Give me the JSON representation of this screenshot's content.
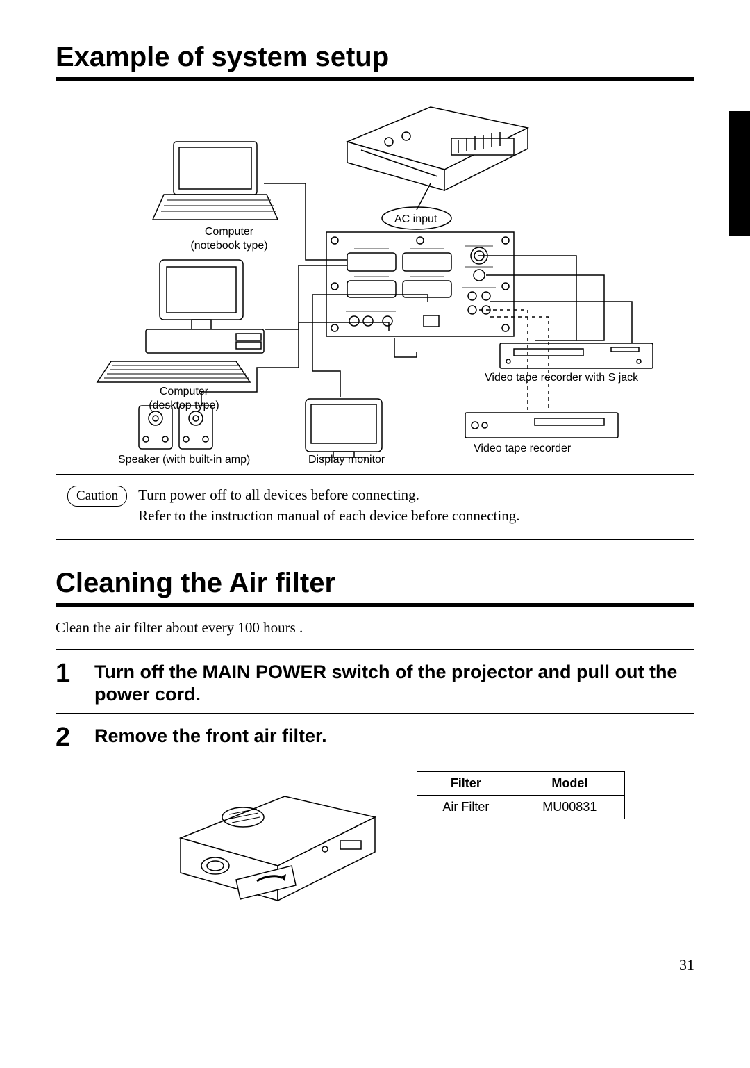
{
  "section1": {
    "title": "Example of system setup"
  },
  "diagram": {
    "labels": {
      "computer_notebook": "Computer\n(notebook type)",
      "computer_desktop": "Computer\n(desktop type)",
      "ac_input": "AC input",
      "speaker": "Speaker (with built-in amp)",
      "display_monitor": "Display monitor",
      "vtr_sjack": "Video tape recorder with S jack",
      "vtr": "Video tape recorder"
    }
  },
  "caution": {
    "pill": "Caution",
    "line1": "Turn power off to all devices before connecting.",
    "line2": "Refer to the instruction manual of each device before connecting."
  },
  "section2": {
    "title": "Cleaning the Air filter",
    "intro": "Clean the air filter about every 100 hours ."
  },
  "steps": {
    "s1_num": "1",
    "s1_text": "Turn off the MAIN POWER switch of the projector and pull out the power cord.",
    "s2_num": "2",
    "s2_text": "Remove the front air filter."
  },
  "filter_table": {
    "head_filter": "Filter",
    "head_model": "Model",
    "row_filter": "Air Filter",
    "row_model": "MU00831"
  },
  "page_number": "31"
}
